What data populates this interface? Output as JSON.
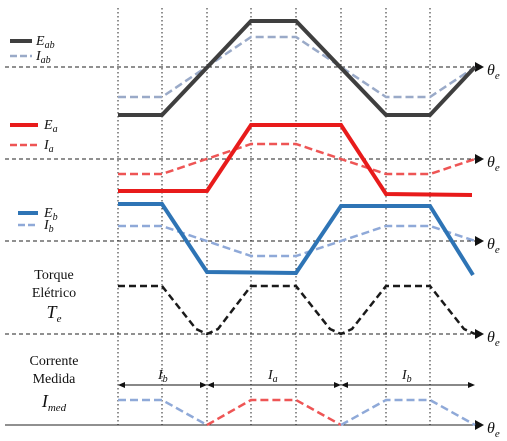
{
  "axis_label": "θ",
  "axis_label_sub": "e",
  "panels": {
    "eab": {
      "legend": [
        {
          "var": "E",
          "sub": "ab",
          "color": "#3f3f3f"
        },
        {
          "var": "I",
          "sub": "ab",
          "color": "#9aaac8"
        }
      ]
    },
    "ea": {
      "legend": [
        {
          "var": "E",
          "sub": "a",
          "color": "#e81b1b"
        },
        {
          "var": "I",
          "sub": "a",
          "color": "#ee5555"
        }
      ]
    },
    "eb": {
      "legend": [
        {
          "var": "E",
          "sub": "b",
          "color": "#2e74b5"
        },
        {
          "var": "I",
          "sub": "b",
          "color": "#8fa9d8"
        }
      ]
    },
    "torque": {
      "label_line1": "Torque",
      "label_line2": "Elétrico",
      "symbol": "T",
      "symbol_sub": "e"
    },
    "current": {
      "label_line1": "Corrente",
      "label_line2": "Medida",
      "symbol": "I",
      "symbol_sub": "med",
      "intervals": [
        {
          "var": "I",
          "sub": "b"
        },
        {
          "var": "I",
          "sub": "a"
        },
        {
          "var": "I",
          "sub": "b"
        }
      ]
    }
  },
  "colors": {
    "grid": "#222222",
    "torque": "#1a1a1a",
    "measured_a": "#ee5555",
    "measured_b": "#8fa9d8"
  }
}
